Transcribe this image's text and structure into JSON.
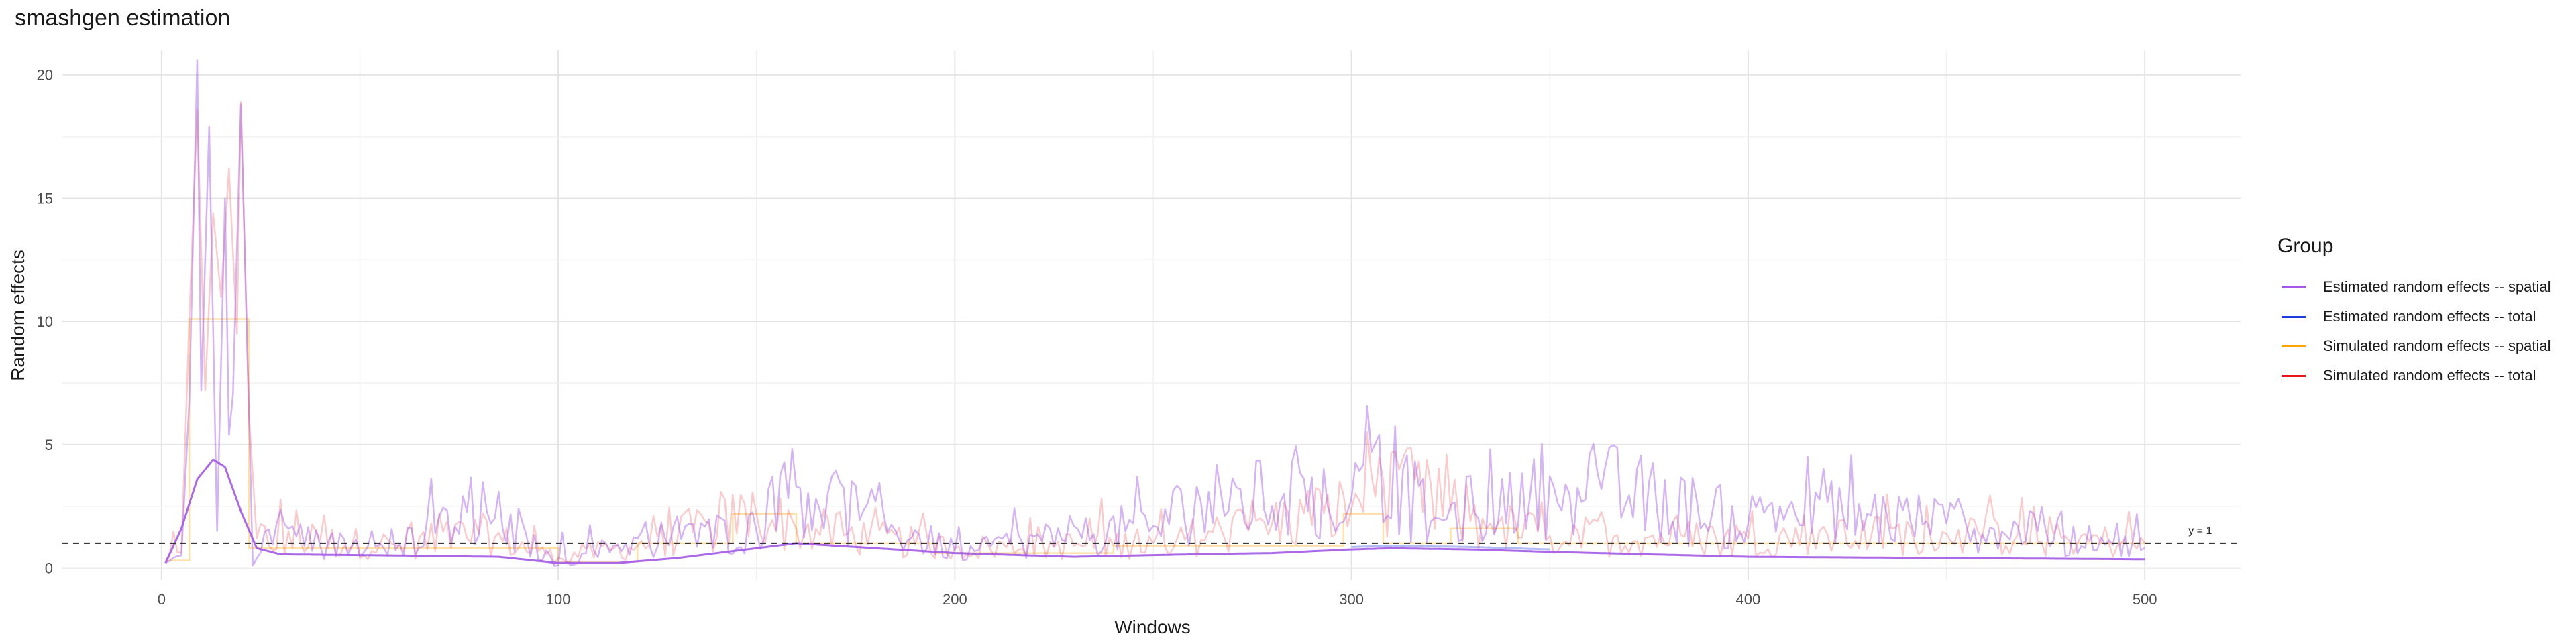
{
  "title": "smashgen estimation",
  "chart_data": {
    "type": "line",
    "title": "smashgen estimation",
    "xlabel": "Windows",
    "ylabel": "Random effects",
    "xlim": [
      -25,
      525
    ],
    "ylim": [
      -0.5,
      21
    ],
    "x_ticks": [
      0,
      100,
      200,
      300,
      400,
      500
    ],
    "y_ticks": [
      0,
      5,
      10,
      15,
      20
    ],
    "grid": true,
    "hline": {
      "y": 1,
      "label": "y = 1",
      "style": "dashed"
    },
    "legend": {
      "title": "Group",
      "position": "right",
      "entries": [
        {
          "name": "Estimated random effects -- spatial",
          "color": "#a259e6"
        },
        {
          "name": "Estimated random effects -- total",
          "color": "#1f3fe0"
        },
        {
          "name": "Simulated random effects -- spatial",
          "color": "#ffa600"
        },
        {
          "name": "Simulated random effects -- total",
          "color": "#e8141a"
        }
      ]
    },
    "series": [
      {
        "name": "Simulated random effects -- spatial",
        "color": "#ffa600",
        "opacity": 0.35,
        "shape": "step",
        "points": [
          [
            1,
            0.3
          ],
          [
            7,
            0.3
          ],
          [
            7,
            10.1
          ],
          [
            22,
            10.1
          ],
          [
            22,
            0.8
          ],
          [
            100,
            0.8
          ],
          [
            100,
            0.25
          ],
          [
            120,
            0.25
          ],
          [
            120,
            1.0
          ],
          [
            144,
            1.0
          ],
          [
            144,
            2.2
          ],
          [
            160,
            2.2
          ],
          [
            160,
            1.0
          ],
          [
            195,
            1.0
          ],
          [
            195,
            0.6
          ],
          [
            240,
            0.6
          ],
          [
            240,
            0.9
          ],
          [
            298,
            0.9
          ],
          [
            298,
            2.2
          ],
          [
            308,
            2.2
          ],
          [
            308,
            1.0
          ],
          [
            325,
            1.0
          ],
          [
            325,
            1.6
          ],
          [
            342,
            1.6
          ],
          [
            342,
            1.0
          ],
          [
            500,
            1.0
          ]
        ]
      },
      {
        "name": "Simulated random effects -- total",
        "color": "#e8141a",
        "opacity": 0.22,
        "shape": "noisy",
        "points": [
          [
            1,
            0.3
          ],
          [
            5,
            0.6
          ],
          [
            7,
            10.1
          ],
          [
            9,
            18.6
          ],
          [
            11,
            7.2
          ],
          [
            13,
            14.4
          ],
          [
            15,
            11.0
          ],
          [
            17,
            16.2
          ],
          [
            19,
            9.5
          ],
          [
            20,
            18.9
          ],
          [
            22,
            6.3
          ],
          [
            24,
            1.2
          ],
          [
            40,
            1.1
          ],
          [
            60,
            0.9
          ],
          [
            80,
            1.4
          ],
          [
            100,
            0.4
          ],
          [
            120,
            0.9
          ],
          [
            150,
            2.2
          ],
          [
            160,
            1.6
          ],
          [
            200,
            0.8
          ],
          [
            250,
            1.0
          ],
          [
            280,
            1.8
          ],
          [
            300,
            2.4
          ],
          [
            305,
            3.8
          ],
          [
            330,
            1.9
          ],
          [
            350,
            1.3
          ],
          [
            400,
            1.2
          ],
          [
            450,
            1.4
          ],
          [
            500,
            1.0
          ]
        ]
      },
      {
        "name": "Estimated random effects -- spatial",
        "color": "#a259e6",
        "opacity": 0.45,
        "shape": "noisy",
        "points": [
          [
            1,
            0.2
          ],
          [
            5,
            0.5
          ],
          [
            7,
            6.8
          ],
          [
            9,
            20.6
          ],
          [
            10,
            7.2
          ],
          [
            12,
            17.9
          ],
          [
            14,
            1.5
          ],
          [
            16,
            15.0
          ],
          [
            17,
            5.4
          ],
          [
            18,
            7.0
          ],
          [
            20,
            18.8
          ],
          [
            22,
            6.6
          ],
          [
            23,
            0.1
          ],
          [
            29,
            1.8
          ],
          [
            40,
            0.9
          ],
          [
            60,
            1.0
          ],
          [
            82,
            2.3
          ],
          [
            100,
            0.1
          ],
          [
            120,
            1.2
          ],
          [
            150,
            1.5
          ],
          [
            157,
            4.3
          ],
          [
            165,
            2.8
          ],
          [
            200,
            0.7
          ],
          [
            250,
            1.7
          ],
          [
            262,
            2.7
          ],
          [
            300,
            2.8
          ],
          [
            305,
            4.7
          ],
          [
            320,
            1.9
          ],
          [
            351,
            3.3
          ],
          [
            363,
            3.2
          ],
          [
            400,
            1.8
          ],
          [
            405,
            2.5
          ],
          [
            445,
            1.9
          ],
          [
            500,
            0.8
          ]
        ]
      },
      {
        "name": "Estimated random effects -- spatial",
        "color": "#a259e6",
        "opacity": 0.9,
        "shape": "smooth",
        "points": [
          [
            1,
            0.2
          ],
          [
            5,
            1.6
          ],
          [
            9,
            3.6
          ],
          [
            13,
            4.4
          ],
          [
            16,
            4.1
          ],
          [
            20,
            2.3
          ],
          [
            24,
            0.8
          ],
          [
            30,
            0.55
          ],
          [
            60,
            0.5
          ],
          [
            85,
            0.45
          ],
          [
            100,
            0.2
          ],
          [
            115,
            0.2
          ],
          [
            130,
            0.4
          ],
          [
            150,
            0.8
          ],
          [
            160,
            1.0
          ],
          [
            175,
            0.85
          ],
          [
            200,
            0.6
          ],
          [
            230,
            0.45
          ],
          [
            260,
            0.55
          ],
          [
            280,
            0.6
          ],
          [
            300,
            0.75
          ],
          [
            310,
            0.8
          ],
          [
            330,
            0.75
          ],
          [
            350,
            0.65
          ],
          [
            400,
            0.45
          ],
          [
            450,
            0.4
          ],
          [
            500,
            0.35
          ]
        ]
      },
      {
        "name": "Estimated random effects -- total",
        "color": "#1f3fe0",
        "opacity": 0.35,
        "shape": "smooth",
        "points": [
          [
            300,
            0.85
          ],
          [
            310,
            0.9
          ],
          [
            330,
            0.85
          ],
          [
            350,
            0.75
          ]
        ]
      }
    ]
  }
}
